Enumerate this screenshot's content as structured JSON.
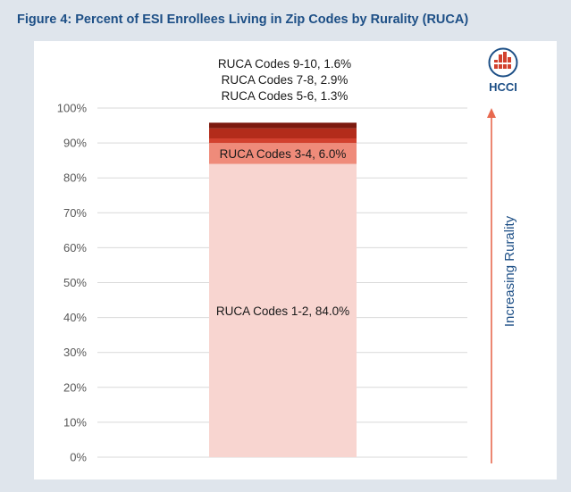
{
  "figure_title": "Figure 4: Percent of ESI Enrollees Living in Zip Codes by Rurality (RUCA)",
  "logo_text": "HCCI",
  "colors": {
    "title": "#1d4f86",
    "arrow": "#e8694f",
    "grid": "#d9d9d9"
  },
  "chart_data": {
    "type": "bar",
    "stacked": true,
    "categories": [
      ""
    ],
    "ylim": [
      0,
      100
    ],
    "yticks": [
      0,
      10,
      20,
      30,
      40,
      50,
      60,
      70,
      80,
      90,
      100
    ],
    "ytick_suffix": "%",
    "grid": true,
    "series": [
      {
        "name": "RUCA Codes 1-2",
        "value": 84.0,
        "label": "RUCA Codes 1-2, 84.0%",
        "color": "#f8d5d0",
        "label_position": "inside"
      },
      {
        "name": "RUCA Codes 3-4",
        "value": 6.0,
        "label": "RUCA Codes 3-4, 6.0%",
        "color": "#ef8b7a",
        "label_position": "inside"
      },
      {
        "name": "RUCA Codes 5-6",
        "value": 1.3,
        "label": "RUCA Codes 5-6, 1.3%",
        "color": "#d2412e",
        "label_position": "above"
      },
      {
        "name": "RUCA Codes 7-8",
        "value": 2.9,
        "label": "RUCA Codes 7-8, 2.9%",
        "color": "#b32c1b",
        "label_position": "above"
      },
      {
        "name": "RUCA Codes 9-10",
        "value": 1.6,
        "label": "RUCA Codes 9-10, 1.6%",
        "color": "#7c1a0f",
        "label_position": "above"
      }
    ],
    "right_axis_label": "Increasing Rurality"
  }
}
